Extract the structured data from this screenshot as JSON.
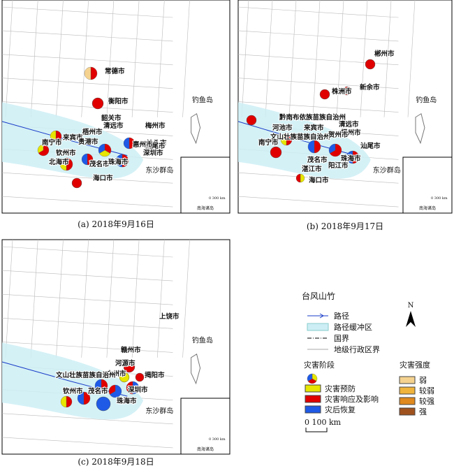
{
  "panels": [
    {
      "caption": "(a) 2018年9月16日",
      "diaoyu": "钓鱼岛",
      "dongsha": "东沙群岛",
      "nanhai": "南海诸岛",
      "scale": "0 300 km",
      "cities": [
        "常德市",
        "衡阳市",
        "韶关市",
        "清远市",
        "梧州市",
        "来宾市",
        "南宁市",
        "贵港市",
        "钦州市",
        "北海市",
        "茂名市",
        "珠海市",
        "海口市",
        "梅州市",
        "汕头市",
        "汕尾市",
        "惠州市",
        "深圳市"
      ]
    },
    {
      "caption": "(b) 2018年9月17日",
      "diaoyu": "钓鱼岛",
      "dongsha": "东沙群岛",
      "nanhai": "南海诸岛",
      "scale": "0 300 km",
      "cities": [
        "郴州市",
        "株洲市",
        "新余市",
        "黔南布依族苗族自治州",
        "河池市",
        "来宾市",
        "清远市",
        "文山壮族苗族自治州",
        "梧州市",
        "南宁市",
        "湛江市",
        "阳江市",
        "汕尾市",
        "海口市",
        "茂名市",
        "珠海市",
        "贺州市"
      ]
    },
    {
      "caption": "(c) 2018年9月18日",
      "diaoyu": "钓鱼岛",
      "dongsha": "东沙群岛",
      "nanhai": "南海诸岛",
      "scale": "0 300 km",
      "cities": [
        "上饶市",
        "赣州市",
        "河源市",
        "广州市",
        "揭阳市",
        "深圳市",
        "珠海市",
        "茂名市",
        "钦州市",
        "文山壮族苗族自治州"
      ]
    }
  ],
  "legend": {
    "title": "台风山竹",
    "north": "N",
    "lines": [
      "路径",
      "路径缓冲区",
      "国界",
      "地级行政区界"
    ],
    "stage_title": "灾害阶段",
    "stages": [
      "灾害预防",
      "灾害响应及影响",
      "灾后恢复"
    ],
    "intensity_title": "灾害强度",
    "intensities": [
      "弱",
      "较弱",
      "较强",
      "强"
    ],
    "scale": "0 100 km"
  }
}
